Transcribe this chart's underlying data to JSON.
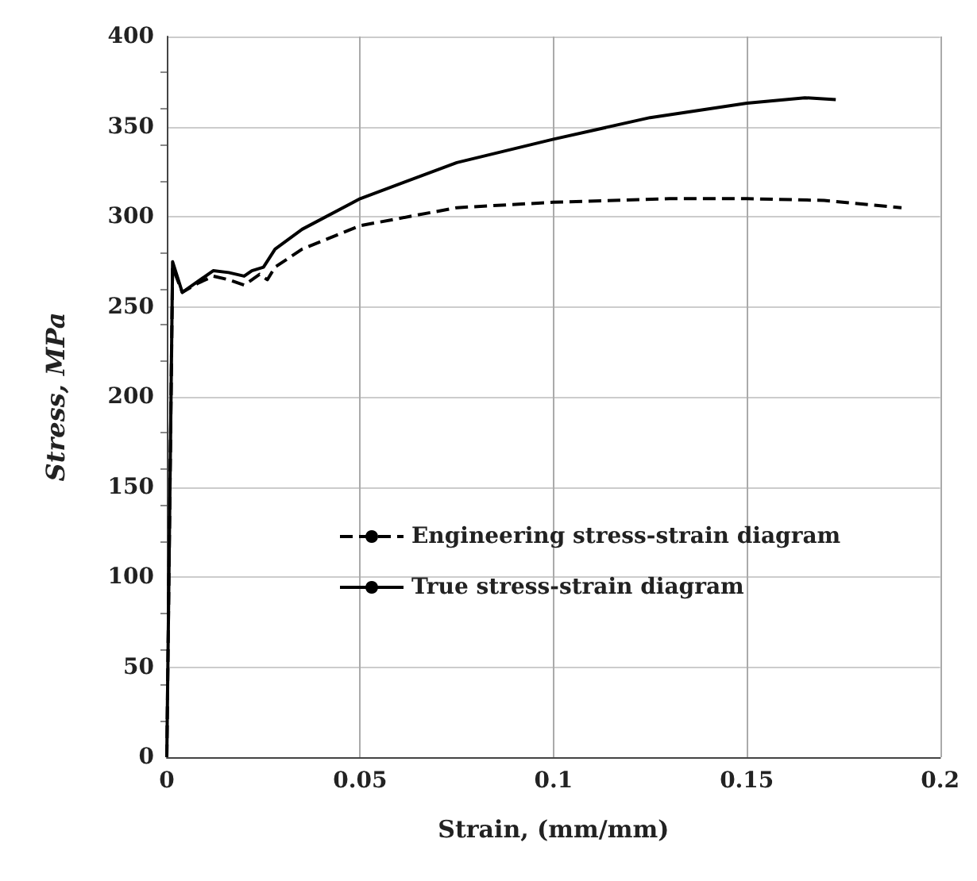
{
  "chart_data": {
    "type": "line",
    "xlabel": "Strain, (mm/mm)",
    "ylabel": "Stress, MPa",
    "xlim": [
      0,
      0.2
    ],
    "ylim": [
      0,
      400
    ],
    "xticks": [
      0,
      0.05,
      0.1,
      0.15,
      0.2
    ],
    "yticks": [
      0,
      50,
      100,
      150,
      200,
      250,
      300,
      350,
      400
    ],
    "grid": true,
    "legend": "center",
    "marker": "none",
    "series": [
      {
        "name": "Engineering stress-strain diagram",
        "color": "#000000",
        "line_style": "dashed",
        "x": [
          0,
          0.0015,
          0.004,
          0.008,
          0.012,
          0.016,
          0.02,
          0.024,
          0.026,
          0.028,
          0.035,
          0.05,
          0.075,
          0.1,
          0.13,
          0.15,
          0.17,
          0.19
        ],
        "values": [
          0,
          272,
          258,
          263,
          267,
          265,
          262,
          268,
          265,
          272,
          282,
          295,
          305,
          308,
          310,
          310,
          309,
          305
        ]
      },
      {
        "name": "True stress-strain diagram",
        "color": "#000000",
        "line_style": "solid",
        "x": [
          0,
          0.0015,
          0.004,
          0.008,
          0.012,
          0.016,
          0.02,
          0.022,
          0.025,
          0.028,
          0.035,
          0.05,
          0.075,
          0.1,
          0.125,
          0.15,
          0.165,
          0.173
        ],
        "values": [
          0,
          275,
          258,
          264,
          270,
          269,
          267,
          270,
          272,
          282,
          293,
          310,
          330,
          343,
          355,
          363,
          366,
          365
        ]
      }
    ]
  }
}
